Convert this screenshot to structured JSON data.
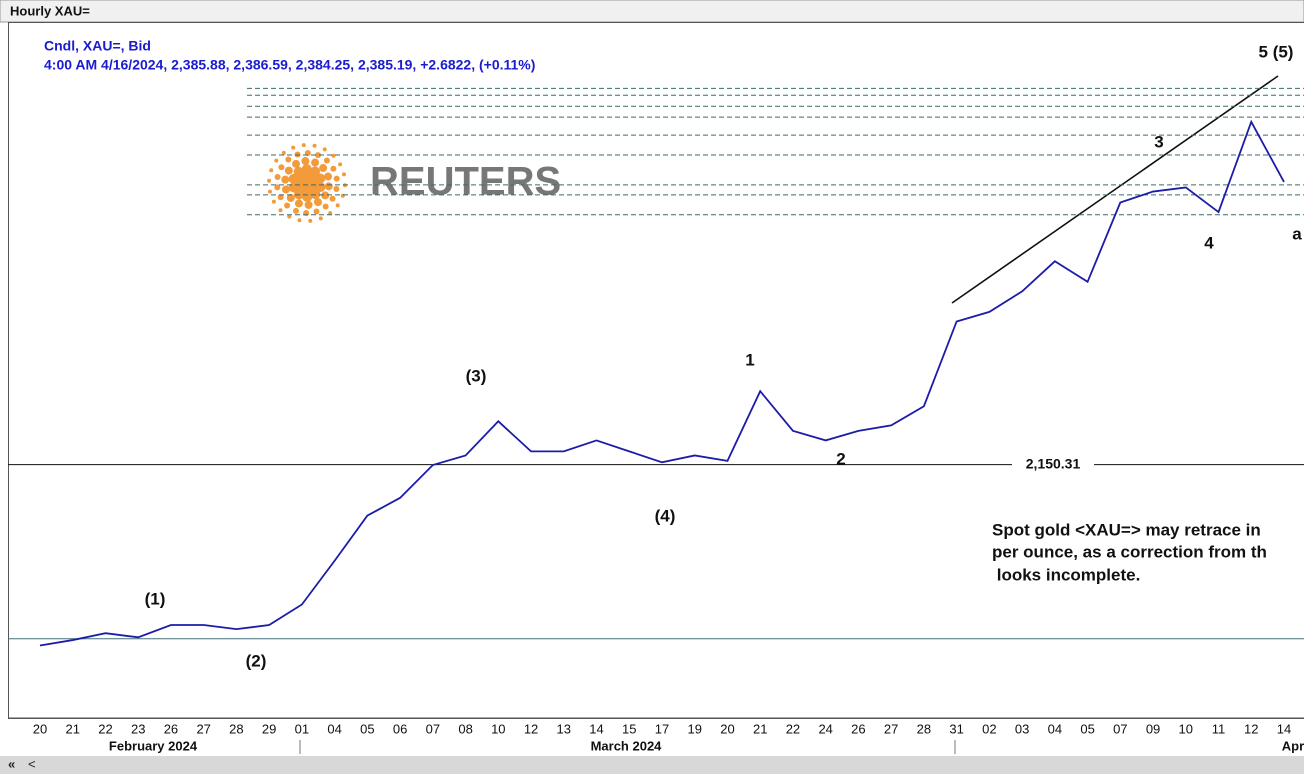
{
  "window_title": "Hourly XAU=",
  "legend_lines": [
    "Cndl, XAU=, Bid",
    "4:00 AM 4/16/2024, 2,385.88, 2,386.59, 2,384.25, 2,385.19, +2.6822, (+0.11%)"
  ],
  "logo_text": "REUTERS",
  "chart_data": {
    "type": "line",
    "categories": [
      "20",
      "21",
      "22",
      "23",
      "26",
      "27",
      "28",
      "29",
      "01",
      "04",
      "05",
      "06",
      "07",
      "08",
      "10",
      "12",
      "13",
      "14",
      "15",
      "17",
      "19",
      "20",
      "21",
      "22",
      "24",
      "26",
      "27",
      "28",
      "31",
      "02",
      "03",
      "04",
      "05",
      "07",
      "09",
      "10",
      "11",
      "12",
      "14"
    ],
    "months": [
      "February 2024",
      "March 2024",
      "Apr"
    ],
    "series": [
      {
        "color": "#1c1ca8",
        "values": [
          2018,
          2022,
          2027,
          2024,
          2033,
          2033,
          2030,
          2033,
          2048,
          2080,
          2113,
          2126,
          2150,
          2157,
          2182,
          2160,
          2160,
          2168,
          2160,
          2152,
          2157,
          2153,
          2204,
          2175,
          2168,
          2175,
          2179,
          2193,
          2255,
          2262,
          2277,
          2299,
          2284,
          2342,
          2350,
          2353,
          2335,
          2401,
          2357
        ]
      }
    ],
    "ylim": [
      1965,
      2474
    ],
    "reference_lines": [
      {
        "value": 2150.31,
        "label": "2,150.31"
      },
      {
        "value": 2023
      }
    ],
    "fib_levels": [
      2425.5,
      2420.4,
      2412.4,
      2404.4,
      2391.3,
      2376.7,
      2354.9,
      2347.6,
      2333.0
    ],
    "wave_labels": [
      "(1)",
      "(2)",
      "(3)",
      "(4)",
      "1",
      "2",
      "3",
      "4",
      "5 (5)",
      "a"
    ],
    "annotation": [
      "Spot gold <XAU=> may retrace in",
      "per ounce, as a correction from th",
      " looks incomplete."
    ]
  }
}
